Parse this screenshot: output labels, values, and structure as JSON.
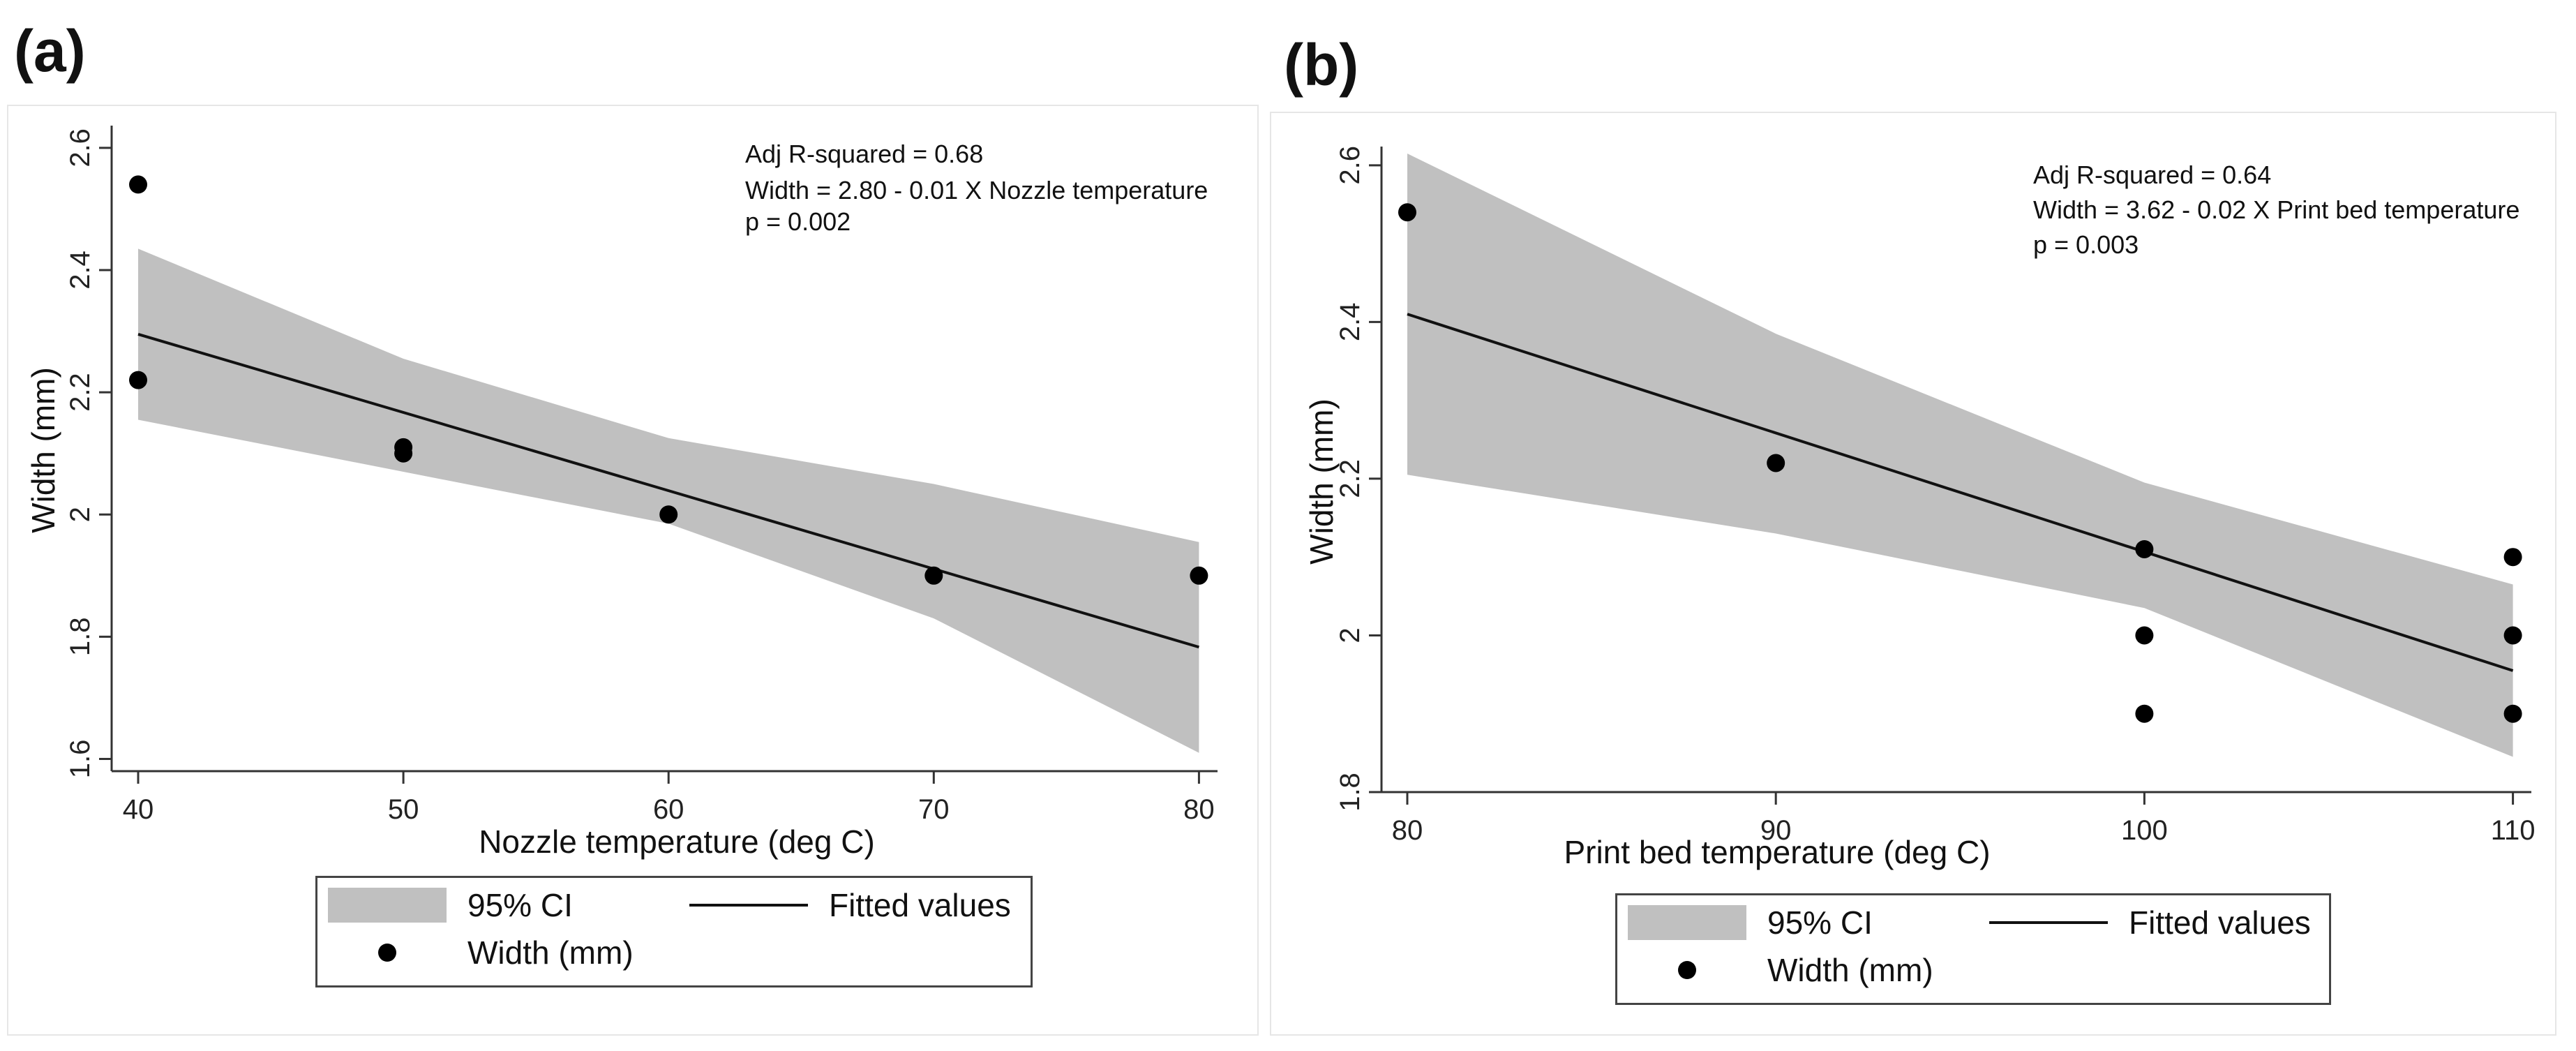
{
  "chart_data": [
    {
      "panel_label": "(a)",
      "type": "scatter",
      "xlabel": "Nozzle temperature (deg C)",
      "ylabel": "Width (mm)",
      "xlim": [
        39,
        80.7
      ],
      "ylim": [
        1.58,
        2.625
      ],
      "xticks": [
        40,
        50,
        60,
        70,
        80
      ],
      "xtick_labels": [
        "40",
        "50",
        "60",
        "70",
        "80"
      ],
      "yticks": [
        1.6,
        1.8,
        2.0,
        2.2,
        2.4,
        2.6
      ],
      "ytick_labels": [
        "1.6",
        "1.8",
        "2",
        "2.2",
        "2.4",
        "2.6"
      ],
      "annotations": [
        "Adj R-squared = 0.68",
        "Width = 2.80 - 0.01 X Nozzle temperature",
        "p = 0.002"
      ],
      "points": {
        "name": "Width (mm)",
        "x": [
          40,
          40,
          50,
          50,
          60,
          70,
          80
        ],
        "y": [
          2.54,
          2.22,
          2.11,
          2.1,
          2.0,
          1.9,
          1.9
        ]
      },
      "fit": {
        "name": "Fitted values",
        "x": [
          40,
          80
        ],
        "y": [
          2.295,
          1.783
        ]
      },
      "ci": {
        "name": "95% CI",
        "x": [
          40,
          50,
          60,
          70,
          80
        ],
        "upper": [
          2.435,
          2.255,
          2.125,
          2.05,
          1.955
        ],
        "lower": [
          2.155,
          2.07,
          1.985,
          1.83,
          1.61
        ]
      },
      "legend": {
        "ci_label": "95% CI",
        "fit_label": "Fitted values",
        "points_label": "Width (mm)"
      }
    },
    {
      "panel_label": "(b)",
      "type": "scatter",
      "xlabel": "Print bed temperature (deg C)",
      "ylabel": "Width (mm)",
      "xlim": [
        79.3,
        110.5
      ],
      "ylim": [
        1.8,
        2.615
      ],
      "xticks": [
        80,
        90,
        100,
        110
      ],
      "xtick_labels": [
        "80",
        "90",
        "100",
        "110"
      ],
      "yticks": [
        1.8,
        2.0,
        2.2,
        2.4,
        2.6
      ],
      "ytick_labels": [
        "1.8",
        "2",
        "2.2",
        "2.4",
        "2.6"
      ],
      "annotations": [
        "Adj R-squared = 0.64",
        "Width = 3.62 - 0.02 X Print bed temperature",
        "p = 0.003"
      ],
      "points": {
        "name": "Width (mm)",
        "x": [
          80,
          90,
          100,
          100,
          100,
          110,
          110,
          110
        ],
        "y": [
          2.54,
          2.22,
          2.11,
          2.0,
          1.9,
          2.1,
          2.0,
          1.9
        ]
      },
      "fit": {
        "name": "Fitted values",
        "x": [
          80,
          110
        ],
        "y": [
          2.41,
          1.955
        ]
      },
      "ci": {
        "name": "95% CI",
        "x": [
          80,
          90,
          100,
          110
        ],
        "upper": [
          2.615,
          2.385,
          2.195,
          2.065
        ],
        "lower": [
          2.205,
          2.13,
          2.035,
          1.845
        ]
      },
      "legend": {
        "ci_label": "95% CI",
        "fit_label": "Fitted values",
        "points_label": "Width (mm)"
      }
    }
  ]
}
